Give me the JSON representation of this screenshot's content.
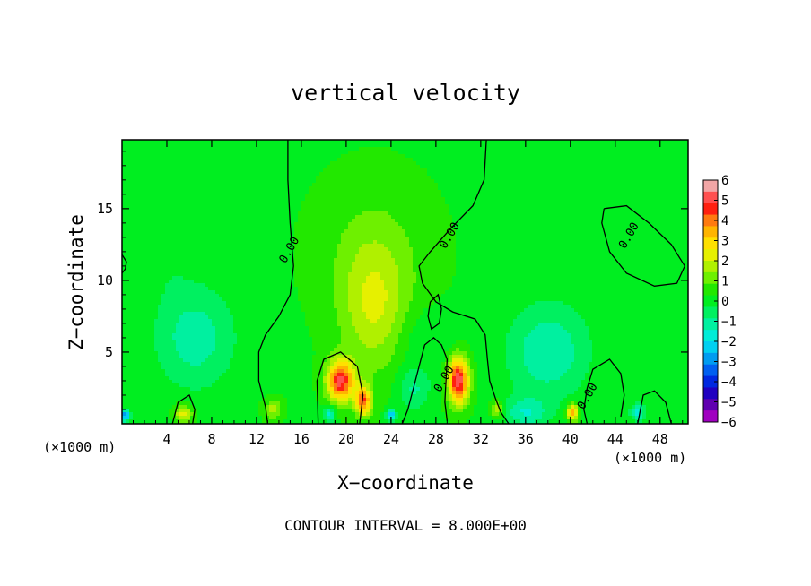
{
  "chart_data": {
    "type": "heatmap",
    "title": "vertical velocity",
    "xlabel": "X−coordinate",
    "ylabel": "Z−coordinate",
    "x_unit_left": "(×1000 m)",
    "x_unit_right": "(×1000 m)",
    "footer": "CONTOUR INTERVAL = 8.000E+00",
    "xlim": [
      0,
      50.5
    ],
    "ylim": [
      0,
      19.8
    ],
    "x_ticks": [
      4,
      8,
      12,
      16,
      20,
      24,
      28,
      32,
      36,
      40,
      44,
      48
    ],
    "x_tick_labels": [
      "4",
      "8",
      "12",
      "16",
      "20",
      "24",
      "28",
      "32",
      "36",
      "40",
      "44",
      "48"
    ],
    "y_ticks": [
      5,
      10,
      15
    ],
    "y_tick_labels": [
      "5",
      "10",
      "15"
    ],
    "background_value": 0.2,
    "features": [
      {
        "x": 6.5,
        "z": 6,
        "sx": 3.5,
        "sz": 3.5,
        "value": -1.4
      },
      {
        "x": 3.5,
        "z": 12,
        "sx": 3,
        "sz": 3,
        "value": -0.4
      },
      {
        "x": 22.5,
        "z": 8,
        "sx": 3,
        "sz": 4.5,
        "value": 1.6
      },
      {
        "x": 22.5,
        "z": 12,
        "sx": 5,
        "sz": 5,
        "value": 0.7
      },
      {
        "x": 19.5,
        "z": 3,
        "sx": 1.2,
        "sz": 1.4,
        "value": 4.8
      },
      {
        "x": 21.5,
        "z": 1.6,
        "sx": 0.7,
        "sz": 1,
        "value": 4
      },
      {
        "x": 30,
        "z": 3,
        "sx": 0.9,
        "sz": 1.6,
        "value": 5.2
      },
      {
        "x": 38,
        "z": 5,
        "sx": 3.5,
        "sz": 3.2,
        "value": -1.6
      },
      {
        "x": 27,
        "z": 6,
        "sx": 2.5,
        "sz": 2,
        "value": -0.6
      },
      {
        "x": 26,
        "z": 2.5,
        "sx": 1.5,
        "sz": 1.5,
        "value": -1.2
      },
      {
        "x": 40.2,
        "z": 0.8,
        "sx": 0.5,
        "sz": 0.6,
        "value": 3.6
      },
      {
        "x": 5.5,
        "z": 0.7,
        "sx": 0.8,
        "sz": 0.6,
        "value": 2.2
      },
      {
        "x": 13.5,
        "z": 1,
        "sx": 0.8,
        "sz": 0.7,
        "value": 1.5
      },
      {
        "x": 33.5,
        "z": 1,
        "sx": 0.6,
        "sz": 0.6,
        "value": 1.8
      },
      {
        "x": 44,
        "z": 13,
        "sx": 6,
        "sz": 5,
        "value": -0.2
      },
      {
        "x": 0.3,
        "z": 0.6,
        "sx": 0.4,
        "sz": 0.4,
        "value": -3.5
      },
      {
        "x": 24,
        "z": 0.6,
        "sx": 0.4,
        "sz": 0.4,
        "value": -3
      },
      {
        "x": 18.5,
        "z": 0.7,
        "sx": 0.5,
        "sz": 0.5,
        "value": -2
      },
      {
        "x": 36,
        "z": 0.8,
        "sx": 2,
        "sz": 1,
        "value": -1.5
      },
      {
        "x": 46,
        "z": 0.8,
        "sx": 0.6,
        "sz": 0.6,
        "value": -2
      }
    ],
    "contours": [
      {
        "label": "0.00",
        "label_at": [
          15.2,
          12
        ],
        "points": [
          [
            14.8,
            19.8
          ],
          [
            14.8,
            17
          ],
          [
            15,
            14
          ],
          [
            15.3,
            11
          ],
          [
            15,
            9
          ],
          [
            14,
            7.5
          ],
          [
            12.8,
            6.2
          ],
          [
            12.2,
            5
          ],
          [
            12.2,
            3
          ],
          [
            12.8,
            1.2
          ],
          [
            13,
            0
          ]
        ]
      },
      {
        "label": "0.00",
        "label_at": [
          29.5,
          13
        ],
        "points": [
          [
            32.5,
            19.8
          ],
          [
            32.3,
            17
          ],
          [
            31.3,
            15.2
          ],
          [
            29.3,
            13.6
          ],
          [
            27.5,
            12
          ],
          [
            26.5,
            11
          ],
          [
            26.8,
            9.8
          ],
          [
            28,
            8.5
          ],
          [
            29.5,
            7.8
          ],
          [
            31.5,
            7.3
          ],
          [
            32.4,
            6.2
          ],
          [
            32.6,
            4.5
          ],
          [
            32.8,
            3
          ],
          [
            33.3,
            1.8
          ],
          [
            33.8,
            0.8
          ],
          [
            34.5,
            0
          ]
        ]
      },
      {
        "label": "0.00",
        "label_at": [
          45.5,
          13
        ],
        "points": [
          [
            43,
            15
          ],
          [
            45,
            15.2
          ],
          [
            47,
            14
          ],
          [
            49,
            12.5
          ],
          [
            50.2,
            11
          ],
          [
            49.5,
            9.8
          ],
          [
            47.5,
            9.6
          ],
          [
            45,
            10.5
          ],
          [
            43.5,
            12
          ],
          [
            42.8,
            14
          ],
          [
            43,
            15
          ]
        ]
      },
      {
        "label": "0.00",
        "label_at": [
          29,
          3
        ],
        "points": [
          [
            29,
            0.2
          ],
          [
            28.8,
            1.5
          ],
          [
            28.9,
            3
          ],
          [
            29,
            4.5
          ],
          [
            28.5,
            5.5
          ],
          [
            27.8,
            6
          ],
          [
            27,
            5.5
          ],
          [
            26.5,
            4
          ],
          [
            26,
            2.5
          ],
          [
            25.5,
            1
          ],
          [
            25,
            0
          ]
        ]
      },
      {
        "label": "0.00",
        "label_at": [
          41.8,
          1.8
        ],
        "points": [
          [
            41.5,
            0
          ],
          [
            41.2,
            1
          ],
          [
            41.5,
            2.5
          ],
          [
            42,
            3.8
          ],
          [
            43.5,
            4.5
          ],
          [
            44.5,
            3.5
          ],
          [
            44.8,
            2
          ],
          [
            44.5,
            0.5
          ]
        ]
      },
      {
        "label": "",
        "label_at": [
          0,
          0
        ],
        "points": [
          [
            27.5,
            8.5
          ],
          [
            28.2,
            9
          ],
          [
            28.5,
            8
          ],
          [
            28.3,
            7
          ],
          [
            27.6,
            6.6
          ],
          [
            27.3,
            7.5
          ],
          [
            27.5,
            8.5
          ]
        ]
      },
      {
        "label": "",
        "label_at": [
          0,
          0
        ],
        "points": [
          [
            0,
            11.8
          ],
          [
            0.4,
            11.3
          ],
          [
            0.3,
            10.8
          ],
          [
            0,
            10.5
          ]
        ]
      },
      {
        "label": "",
        "label_at": [
          0,
          0
        ],
        "points": [
          [
            4.5,
            0
          ],
          [
            5,
            1.5
          ],
          [
            6,
            2
          ],
          [
            6.5,
            1
          ],
          [
            6.3,
            0
          ]
        ]
      },
      {
        "label": "",
        "label_at": [
          0,
          0
        ],
        "points": [
          [
            17.5,
            0
          ],
          [
            17.4,
            3
          ],
          [
            18,
            4.5
          ],
          [
            19.5,
            5
          ],
          [
            21,
            4
          ],
          [
            21.5,
            2
          ],
          [
            21.2,
            0
          ]
        ]
      },
      {
        "label": "",
        "label_at": [
          0,
          0
        ],
        "points": [
          [
            46,
            0
          ],
          [
            46.5,
            2
          ],
          [
            47.5,
            2.3
          ],
          [
            48.5,
            1.5
          ],
          [
            49,
            0
          ]
        ]
      }
    ],
    "colorbar": {
      "ticks": [
        6,
        5,
        4,
        3,
        2,
        1,
        0,
        -1,
        -2,
        -3,
        -4,
        -5,
        -6
      ],
      "tick_labels": [
        "6",
        "5",
        "4",
        "3",
        "2",
        "1",
        "0",
        "−1",
        "−2",
        "−3",
        "−4",
        "−5",
        "−6"
      ],
      "colors": [
        "#f2a6a6",
        "#ff5050",
        "#ff2010",
        "#ff7a10",
        "#ffb400",
        "#ffe000",
        "#e6f000",
        "#b0f000",
        "#6ef000",
        "#22e800",
        "#00ee20",
        "#00f060",
        "#00f0a0",
        "#00ecd8",
        "#00d0f0",
        "#009cf0",
        "#0060f0",
        "#0028e0",
        "#2000c0",
        "#6000b0",
        "#a000c0"
      ]
    }
  }
}
